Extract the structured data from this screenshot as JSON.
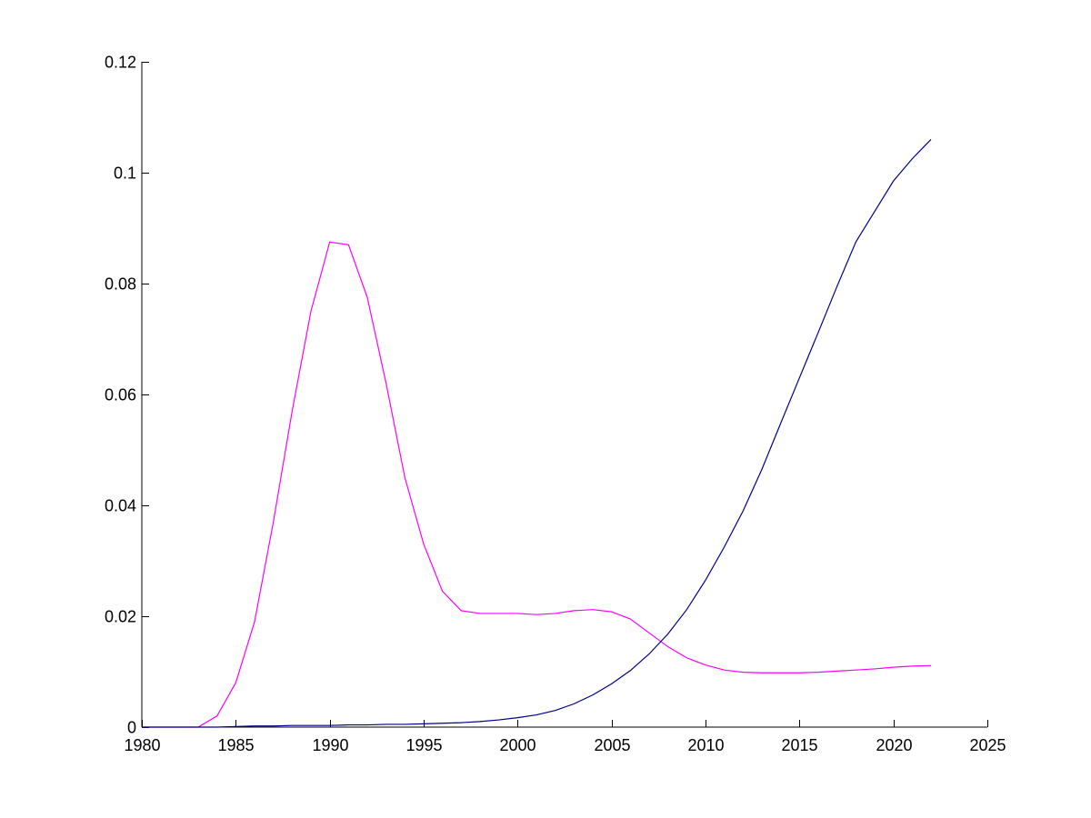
{
  "chart_data": {
    "type": "line",
    "title": "",
    "xlabel": "",
    "ylabel": "",
    "xlim": [
      1980,
      2025
    ],
    "ylim": [
      0,
      0.12
    ],
    "xticks": [
      1980,
      1985,
      1990,
      1995,
      2000,
      2005,
      2010,
      2015,
      2020,
      2025
    ],
    "xtick_labels": [
      "1980",
      "1985",
      "1990",
      "1995",
      "2000",
      "2005",
      "2010",
      "2015",
      "2020",
      "2025"
    ],
    "yticks": [
      0,
      0.02,
      0.04,
      0.06,
      0.08,
      0.1,
      0.12
    ],
    "ytick_labels": [
      "0",
      "0.02",
      "0.04",
      "0.06",
      "0.08",
      "0.1",
      "0.12"
    ],
    "grid": false,
    "box": "left-bottom axes only",
    "series": [
      {
        "color": "#ff00ff",
        "x": [
          1980,
          1981,
          1982,
          1983,
          1984,
          1985,
          1986,
          1987,
          1988,
          1989,
          1990,
          1991,
          1992,
          1993,
          1994,
          1995,
          1996,
          1997,
          1998,
          1999,
          2000,
          2001,
          2002,
          2003,
          2004,
          2005,
          2006,
          2007,
          2008,
          2009,
          2010,
          2011,
          2012,
          2013,
          2014,
          2015,
          2016,
          2017,
          2018,
          2019,
          2020,
          2021,
          2022
        ],
        "y": [
          0,
          0,
          0,
          0,
          0.002,
          0.008,
          0.019,
          0.037,
          0.057,
          0.075,
          0.0875,
          0.087,
          0.0775,
          0.062,
          0.045,
          0.033,
          0.0245,
          0.021,
          0.0205,
          0.0205,
          0.0205,
          0.0203,
          0.0205,
          0.021,
          0.0212,
          0.0208,
          0.0195,
          0.017,
          0.0145,
          0.0125,
          0.0112,
          0.0103,
          0.0099,
          0.0098,
          0.0098,
          0.0098,
          0.0099,
          0.0101,
          0.0103,
          0.0105,
          0.0108,
          0.011,
          0.0111
        ]
      },
      {
        "color": "#00008b",
        "x": [
          1980,
          1981,
          1982,
          1983,
          1984,
          1985,
          1986,
          1987,
          1988,
          1989,
          1990,
          1991,
          1992,
          1993,
          1994,
          1995,
          1996,
          1997,
          1998,
          1999,
          2000,
          2001,
          2002,
          2003,
          2004,
          2005,
          2006,
          2007,
          2008,
          2009,
          2010,
          2011,
          2012,
          2013,
          2014,
          2015,
          2016,
          2017,
          2018,
          2019,
          2020,
          2021,
          2022
        ],
        "y": [
          0,
          0,
          0,
          0,
          0,
          0.0001,
          0.0002,
          0.0002,
          0.0003,
          0.0003,
          0.0003,
          0.0004,
          0.0004,
          0.0005,
          0.0005,
          0.0006,
          0.0007,
          0.0008,
          0.001,
          0.0013,
          0.0017,
          0.0022,
          0.003,
          0.0042,
          0.0058,
          0.0078,
          0.0102,
          0.0132,
          0.0168,
          0.0212,
          0.0265,
          0.0325,
          0.039,
          0.0465,
          0.0548,
          0.063,
          0.0712,
          0.0795,
          0.0875,
          0.093,
          0.0985,
          0.1025,
          0.106
        ]
      }
    ]
  }
}
